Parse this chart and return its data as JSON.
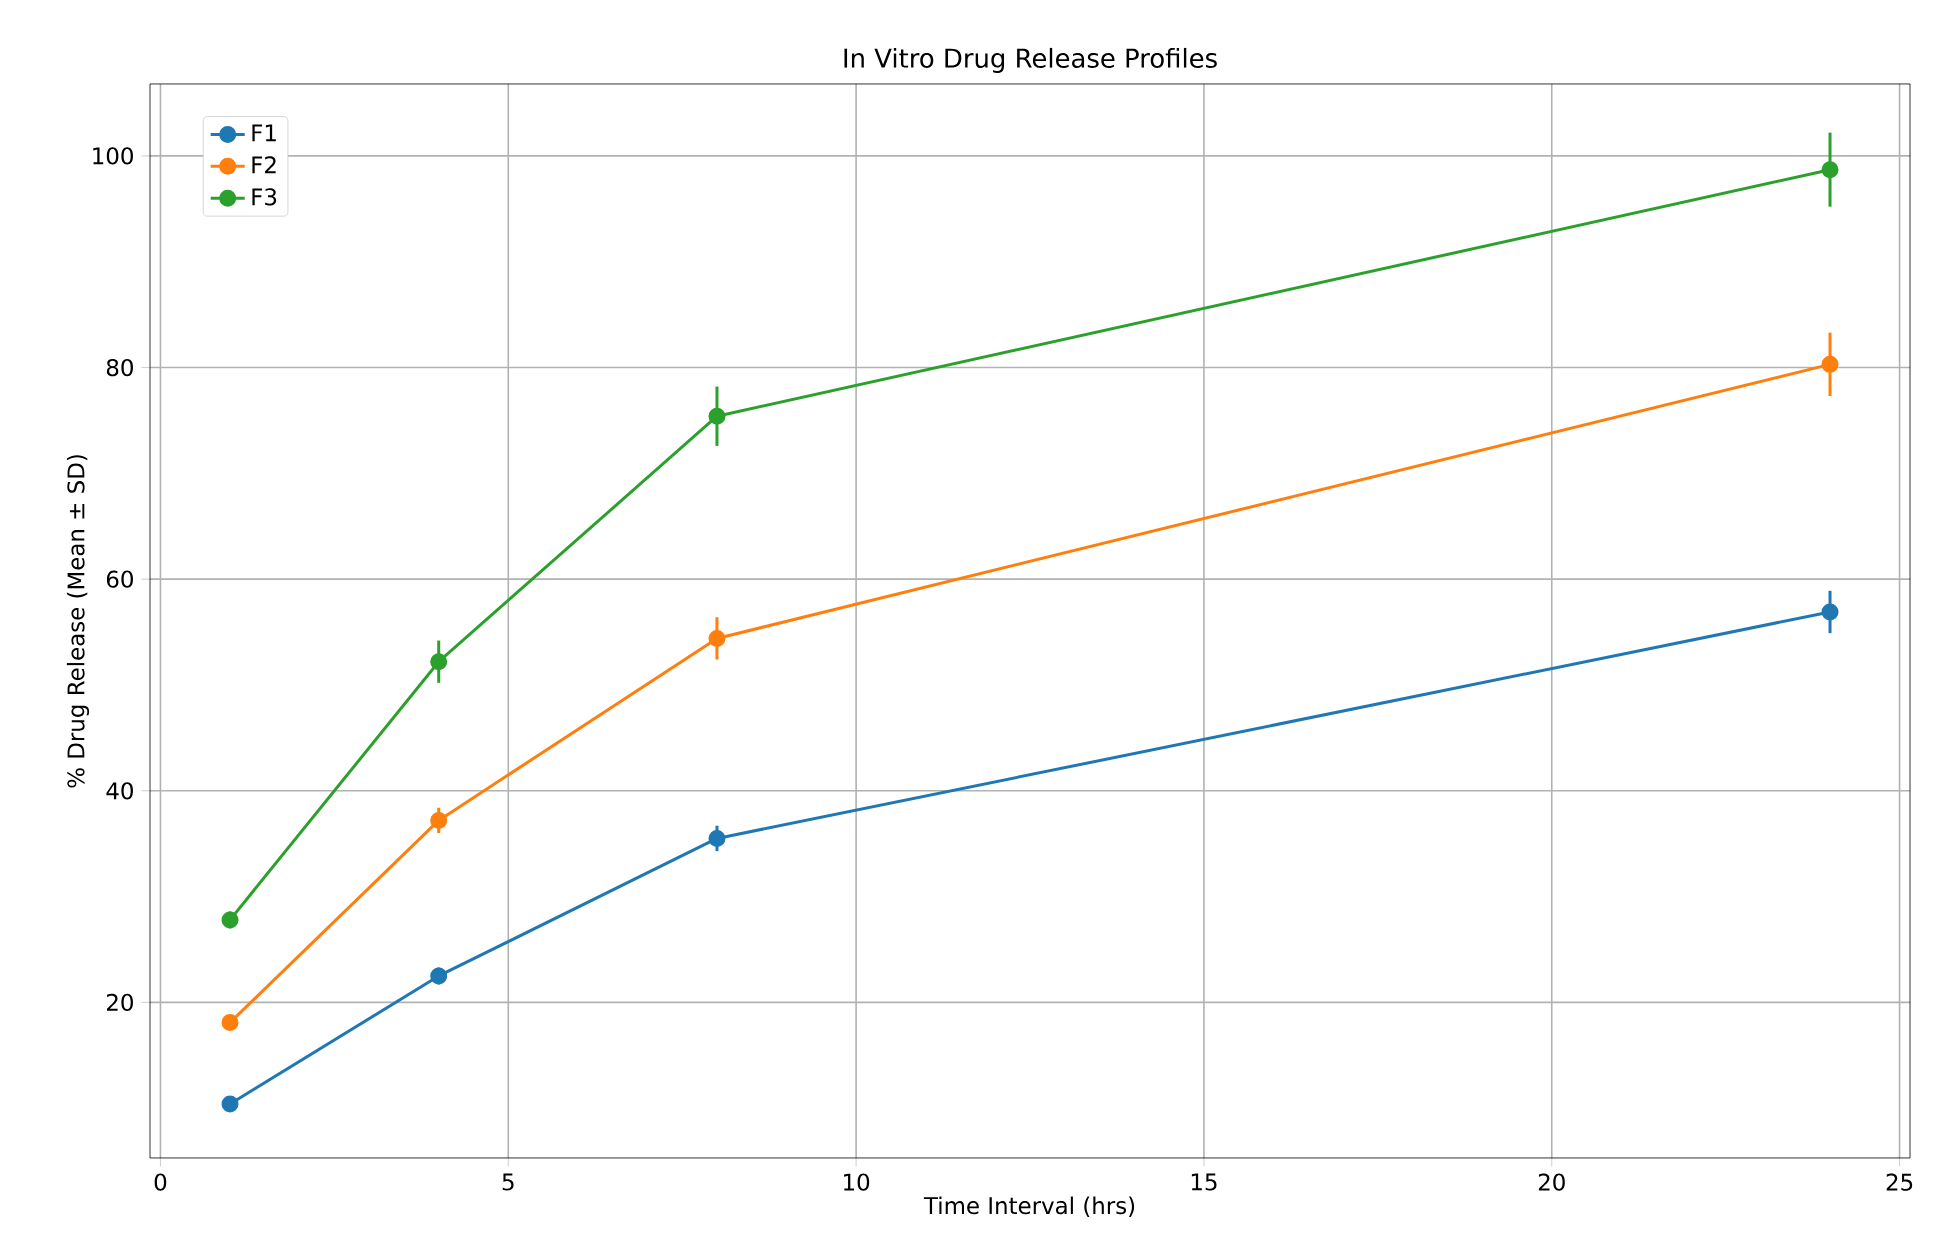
{
  "chart_data": {
    "type": "line",
    "title": "In Vitro Drug Release Profiles",
    "xlabel": "Time Interval (hrs)",
    "ylabel": "% Drug Release (Mean ± SD)",
    "x": [
      1,
      4,
      8,
      24
    ],
    "series": [
      {
        "name": "F1",
        "color": "#1f77b4",
        "values": [
          10.4,
          22.5,
          35.5,
          56.9
        ],
        "errors": [
          0.5,
          0.8,
          1.2,
          2.0
        ]
      },
      {
        "name": "F2",
        "color": "#ff7f0e",
        "values": [
          18.1,
          37.2,
          54.4,
          80.3
        ],
        "errors": [
          0.5,
          1.2,
          2.0,
          3.0
        ]
      },
      {
        "name": "F3",
        "color": "#2ca02c",
        "values": [
          27.8,
          52.2,
          75.4,
          98.7
        ],
        "errors": [
          0.8,
          2.0,
          2.8,
          3.5
        ]
      }
    ],
    "xlim": [
      -0.15,
      25.15
    ],
    "ylim": [
      5.3,
      106.8
    ],
    "xticks": [
      0,
      5,
      10,
      15,
      20,
      25
    ],
    "yticks": [
      20,
      40,
      60,
      80,
      100
    ],
    "grid": true,
    "legend": "top left",
    "marker": "circle",
    "line_style": "solid"
  }
}
